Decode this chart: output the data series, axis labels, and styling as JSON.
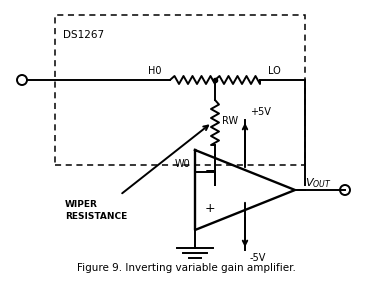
{
  "title": "Figure 9. Inverting variable gain amplifier.",
  "bg_color": "#ffffff",
  "line_color": "#000000",
  "figsize": [
    3.72,
    2.81
  ],
  "dpi": 100,
  "xlim": [
    0,
    372
  ],
  "ylim": [
    0,
    281
  ]
}
